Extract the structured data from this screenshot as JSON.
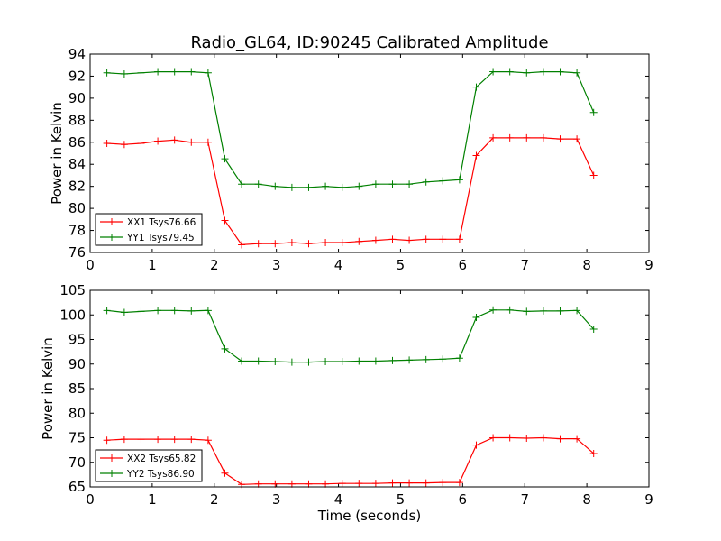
{
  "figure": {
    "title": "Radio_GL64, ID:90245 Calibrated Amplitude"
  },
  "chart_data": [
    {
      "type": "line",
      "title": "Radio_GL64, ID:90245 Calibrated Amplitude",
      "xlabel": "",
      "ylabel": "Power in Kelvin",
      "xlim": [
        0,
        9
      ],
      "ylim": [
        76,
        94
      ],
      "xticks": [
        "0",
        "1",
        "2",
        "3",
        "4",
        "5",
        "6",
        "7",
        "8",
        "9"
      ],
      "yticks": [
        "76",
        "78",
        "80",
        "82",
        "84",
        "86",
        "88",
        "90",
        "92",
        "94"
      ],
      "legend_position": "lower-left",
      "x": [
        0.27,
        0.55,
        0.82,
        1.09,
        1.36,
        1.63,
        1.9,
        2.17,
        2.44,
        2.71,
        2.98,
        3.25,
        3.52,
        3.79,
        4.06,
        4.33,
        4.6,
        4.87,
        5.14,
        5.41,
        5.68,
        5.95,
        6.22,
        6.49,
        6.76,
        7.03,
        7.3,
        7.57,
        7.84,
        8.11
      ],
      "series": [
        {
          "name": "XX1 Tsys76.66",
          "color": "#ff0000",
          "values": [
            85.9,
            85.8,
            85.9,
            86.1,
            86.2,
            86.0,
            86.0,
            78.9,
            76.7,
            76.8,
            76.8,
            76.9,
            76.8,
            76.9,
            76.9,
            77.0,
            77.1,
            77.2,
            77.1,
            77.2,
            77.2,
            77.2,
            84.8,
            86.4,
            86.4,
            86.4,
            86.4,
            86.3,
            86.3,
            83.0
          ]
        },
        {
          "name": "YY1 Tsys79.45",
          "color": "#008000",
          "values": [
            92.3,
            92.2,
            92.3,
            92.4,
            92.4,
            92.4,
            92.3,
            84.5,
            82.2,
            82.2,
            82.0,
            81.9,
            81.9,
            82.0,
            81.9,
            82.0,
            82.2,
            82.2,
            82.2,
            82.4,
            82.5,
            82.6,
            91.0,
            92.4,
            92.4,
            92.3,
            92.4,
            92.4,
            92.3,
            88.7
          ]
        }
      ]
    },
    {
      "type": "line",
      "title": "",
      "xlabel": "Time (seconds)",
      "ylabel": "Power in Kelvin",
      "xlim": [
        0,
        9
      ],
      "ylim": [
        65,
        105
      ],
      "xticks": [
        "0",
        "1",
        "2",
        "3",
        "4",
        "5",
        "6",
        "7",
        "8",
        "9"
      ],
      "yticks": [
        "65",
        "70",
        "75",
        "80",
        "85",
        "90",
        "95",
        "100",
        "105"
      ],
      "legend_position": "lower-left",
      "x": [
        0.27,
        0.55,
        0.82,
        1.09,
        1.36,
        1.63,
        1.9,
        2.17,
        2.44,
        2.71,
        2.98,
        3.25,
        3.52,
        3.79,
        4.06,
        4.33,
        4.6,
        4.87,
        5.14,
        5.41,
        5.68,
        5.95,
        6.22,
        6.49,
        6.76,
        7.03,
        7.3,
        7.57,
        7.84,
        8.11
      ],
      "series": [
        {
          "name": "XX2 Tsys65.82",
          "color": "#ff0000",
          "values": [
            74.5,
            74.7,
            74.7,
            74.7,
            74.7,
            74.7,
            74.5,
            67.8,
            65.5,
            65.6,
            65.6,
            65.6,
            65.6,
            65.6,
            65.7,
            65.7,
            65.7,
            65.8,
            65.8,
            65.8,
            65.9,
            65.9,
            73.5,
            75.0,
            75.0,
            74.9,
            75.0,
            74.8,
            74.8,
            71.8
          ]
        },
        {
          "name": "YY2 Tsys86.90",
          "color": "#008000",
          "values": [
            100.9,
            100.5,
            100.7,
            100.9,
            100.9,
            100.8,
            100.9,
            93.1,
            90.6,
            90.6,
            90.5,
            90.4,
            90.4,
            90.5,
            90.5,
            90.6,
            90.6,
            90.7,
            90.8,
            90.9,
            91.0,
            91.2,
            99.5,
            101.0,
            101.0,
            100.7,
            100.8,
            100.8,
            100.9,
            97.1
          ]
        }
      ]
    }
  ]
}
